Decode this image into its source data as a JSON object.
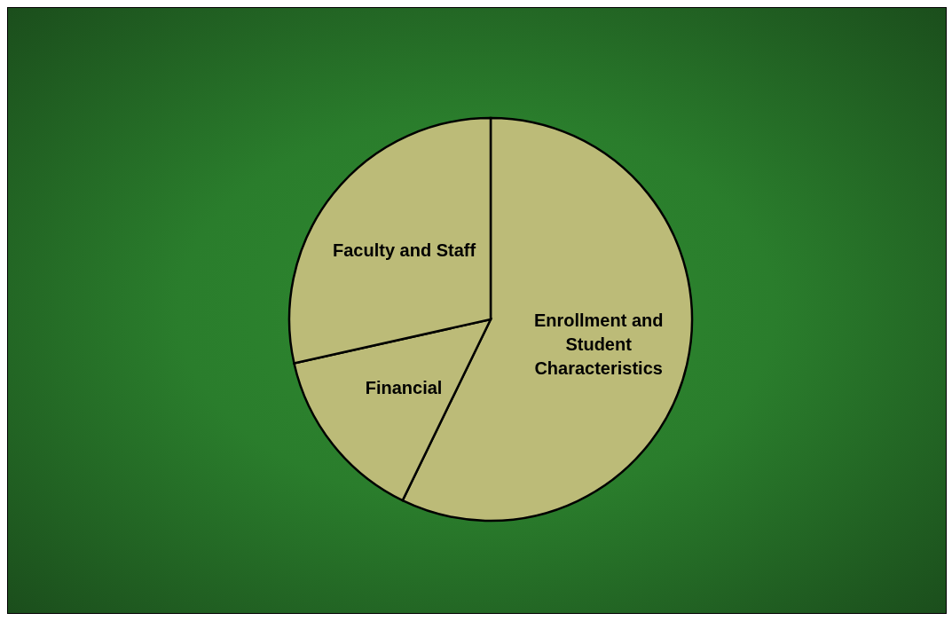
{
  "chart_data": {
    "type": "pie",
    "categories": [
      "Enrollment and Student Characteristics",
      "Financial",
      "Faculty and Staff"
    ],
    "values": [
      57.2,
      14.3,
      28.5
    ],
    "colors": [
      "#bcbb78",
      "#bcbb78",
      "#bcbb78"
    ]
  }
}
